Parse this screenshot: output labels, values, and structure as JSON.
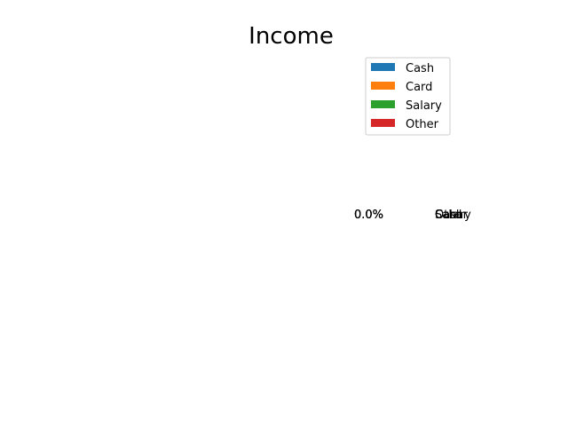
{
  "chart_data": {
    "type": "pie",
    "title": "Income",
    "labels": [
      "Cash",
      "Card",
      "Salary",
      "Other"
    ],
    "values": [
      0,
      0,
      0,
      0
    ],
    "percent_labels": [
      "0.0%",
      "0.0%",
      "0.0%",
      "0.0%"
    ],
    "colors": [
      "#1f77b4",
      "#ff7f0e",
      "#2ca02c",
      "#d62728"
    ],
    "legend": {
      "placement": "upper-right",
      "entries": [
        "Cash",
        "Card",
        "Salary",
        "Other"
      ]
    }
  }
}
